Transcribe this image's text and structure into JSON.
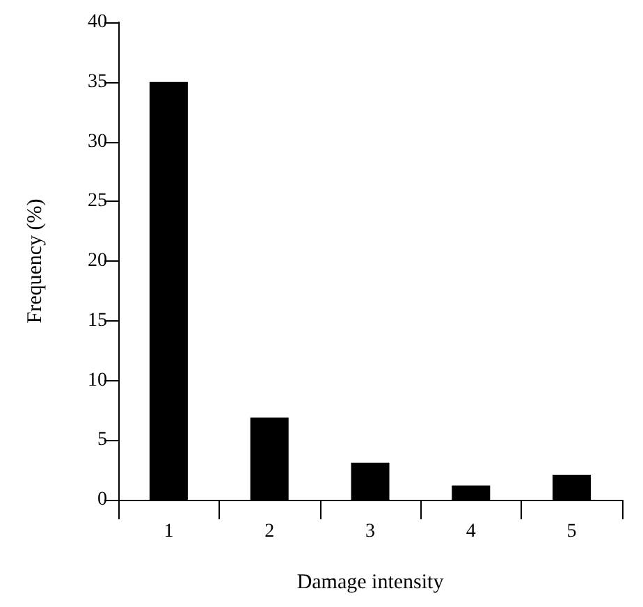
{
  "chart_data": {
    "type": "bar",
    "xlabel": "Damage intensity",
    "ylabel": "Frequency (%)",
    "categories": [
      "1",
      "2",
      "3",
      "4",
      "5"
    ],
    "values": [
      35,
      6.9,
      3.1,
      1.2,
      2.1
    ],
    "color": "#000000",
    "ylim": [
      0,
      40
    ],
    "yticks": [
      0,
      5,
      10,
      15,
      20,
      25,
      30,
      35,
      40
    ],
    "grid": false
  }
}
